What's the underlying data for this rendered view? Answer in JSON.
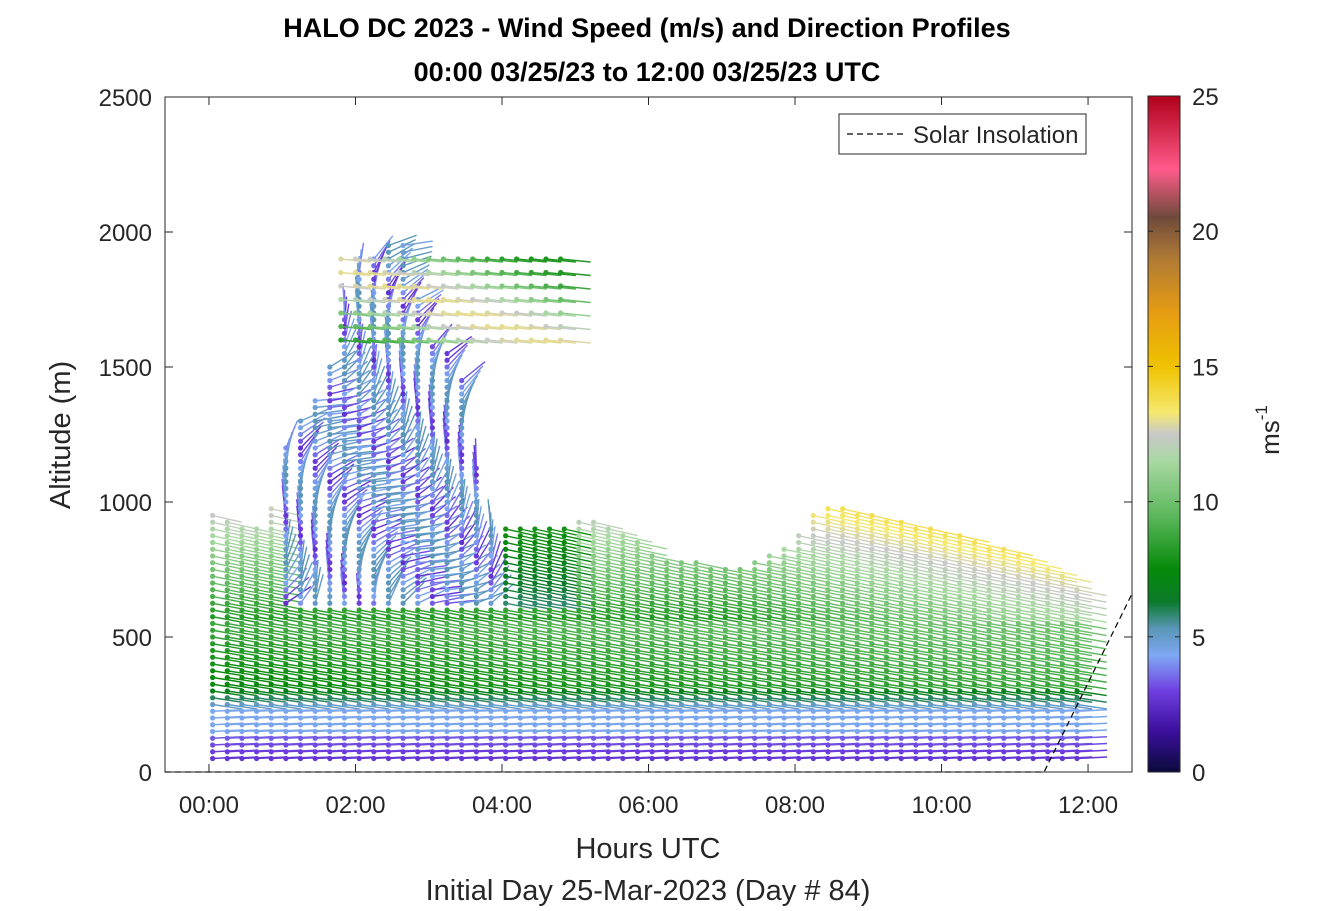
{
  "chart_data": {
    "type": "wind-barb-profile",
    "title_line1": "HALO DC 2023 - Wind Speed (m/s) and Direction Profiles",
    "title_line2": "00:00 03/25/23 to 12:00 03/25/23  UTC",
    "xlabel": "Hours UTC",
    "xsublabel": "Initial Day 25-Mar-2023 (Day # 84)",
    "ylabel": "Altitude (m)",
    "xlim": [
      -0.6,
      12.6
    ],
    "ylim": [
      0,
      2500
    ],
    "xticks": [
      {
        "value": 0,
        "label": "00:00"
      },
      {
        "value": 2,
        "label": "02:00"
      },
      {
        "value": 4,
        "label": "04:00"
      },
      {
        "value": 6,
        "label": "06:00"
      },
      {
        "value": 8,
        "label": "08:00"
      },
      {
        "value": 10,
        "label": "10:00"
      },
      {
        "value": 12,
        "label": "12:00"
      }
    ],
    "yticks": [
      {
        "value": 0,
        "label": "0"
      },
      {
        "value": 500,
        "label": "500"
      },
      {
        "value": 1000,
        "label": "1000"
      },
      {
        "value": 1500,
        "label": "1500"
      },
      {
        "value": 2000,
        "label": "2000"
      },
      {
        "value": 2500,
        "label": "2500"
      }
    ],
    "colorbar": {
      "label": "ms",
      "label_exponent": "-1",
      "range": [
        0,
        25
      ],
      "ticks": [
        {
          "value": 0,
          "label": "0"
        },
        {
          "value": 5,
          "label": "5"
        },
        {
          "value": 10,
          "label": "10"
        },
        {
          "value": 15,
          "label": "15"
        },
        {
          "value": 20,
          "label": "20"
        },
        {
          "value": 25,
          "label": "25"
        }
      ],
      "stops": [
        {
          "v": 0,
          "c": "#0a0a3c"
        },
        {
          "v": 1.5,
          "c": "#3b0f9c"
        },
        {
          "v": 3,
          "c": "#6f3fe0"
        },
        {
          "v": 4.3,
          "c": "#7fa8f4"
        },
        {
          "v": 5.3,
          "c": "#5a96b8"
        },
        {
          "v": 6.3,
          "c": "#0a7a2a"
        },
        {
          "v": 7.5,
          "c": "#078a0a"
        },
        {
          "v": 9.5,
          "c": "#5db85d"
        },
        {
          "v": 11.5,
          "c": "#a9d8a2"
        },
        {
          "v": 12.5,
          "c": "#c9c9c9"
        },
        {
          "v": 13.3,
          "c": "#f5e96e"
        },
        {
          "v": 15,
          "c": "#f0c200"
        },
        {
          "v": 17,
          "c": "#e59c13"
        },
        {
          "v": 19,
          "c": "#b07a35"
        },
        {
          "v": 20.5,
          "c": "#6e4a3a"
        },
        {
          "v": 22.3,
          "c": "#ff5a8a"
        },
        {
          "v": 25,
          "c": "#b0001a"
        }
      ]
    },
    "legend": {
      "label": "Solar Insolation",
      "position": "top-right",
      "line_style": "dashed"
    },
    "solar_insolation": [
      [
        -0.6,
        0
      ],
      [
        11.4,
        0
      ],
      [
        12.6,
        660
      ]
    ],
    "wind_profiles": {
      "time_start": 0.05,
      "time_step": 0.2,
      "time_count": 60,
      "altitude_start": 50,
      "altitude_step": 25,
      "note": "speed (m/s) and direction per time/altitude bin"
    },
    "max_altitude_by_time": [
      [
        0.05,
        950
      ],
      [
        0.8,
        900
      ],
      [
        1.0,
        1200
      ],
      [
        1.6,
        1450
      ],
      [
        2.0,
        1850
      ],
      [
        2.6,
        2000
      ],
      [
        3.0,
        1600
      ],
      [
        3.4,
        1550
      ],
      [
        3.8,
        900
      ],
      [
        4.8,
        900
      ],
      [
        5.2,
        950
      ],
      [
        6.2,
        800
      ],
      [
        7.2,
        750
      ],
      [
        8.0,
        870
      ],
      [
        8.4,
        1000
      ],
      [
        9.2,
        950
      ],
      [
        10.0,
        900
      ],
      [
        11.0,
        820
      ],
      [
        11.6,
        750
      ],
      [
        12.05,
        650
      ]
    ],
    "upper_layer": {
      "t_range": [
        1.8,
        4.9
      ],
      "alt_range": [
        1600,
        1900
      ],
      "speed": 10.5
    }
  }
}
